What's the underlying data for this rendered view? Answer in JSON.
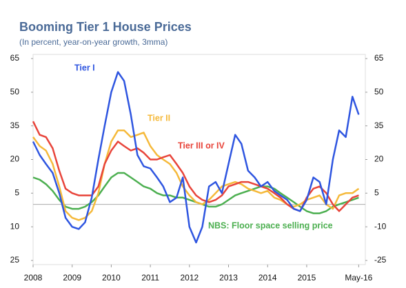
{
  "chart_data": {
    "type": "line",
    "title": "Booming Tier 1 House Prices",
    "subtitle": "(In percent, year-on-year growth, 3mma)",
    "x": [
      2008.0,
      2008.17,
      2008.33,
      2008.5,
      2008.67,
      2008.83,
      2009.0,
      2009.17,
      2009.33,
      2009.5,
      2009.67,
      2009.83,
      2010.0,
      2010.17,
      2010.33,
      2010.5,
      2010.67,
      2010.83,
      2011.0,
      2011.17,
      2011.33,
      2011.5,
      2011.67,
      2011.83,
      2012.0,
      2012.17,
      2012.33,
      2012.5,
      2012.67,
      2012.83,
      2013.0,
      2013.17,
      2013.33,
      2013.5,
      2013.67,
      2013.83,
      2014.0,
      2014.17,
      2014.33,
      2014.5,
      2014.67,
      2014.83,
      2015.0,
      2015.17,
      2015.33,
      2015.5,
      2015.67,
      2015.83,
      2016.0,
      2016.17,
      2016.33
    ],
    "xlim": [
      2008,
      2016.5
    ],
    "xticks": [
      2008,
      2009,
      2010,
      2011,
      2012,
      2013,
      2014,
      2015,
      {
        "value": 2016.33,
        "label": "May-16"
      }
    ],
    "ylim": [
      -25,
      65
    ],
    "yticks": [
      65,
      50,
      35,
      20,
      5,
      {
        "value": -10,
        "label": "10"
      },
      {
        "value": -25,
        "label": "25"
      }
    ],
    "y2lim": [
      -25,
      65
    ],
    "y2ticks": [
      65,
      50,
      35,
      20,
      5,
      -10,
      -25
    ],
    "series": [
      {
        "name": "Tier I",
        "color": "#2e55e0",
        "values": [
          28,
          22,
          18,
          14,
          5,
          -6,
          -10,
          -11,
          -8,
          3,
          20,
          35,
          50,
          59,
          55,
          40,
          22,
          17,
          16,
          12,
          8,
          1,
          3,
          12,
          -10,
          -17,
          -10,
          8,
          10,
          5,
          18,
          31,
          27,
          15,
          12,
          8,
          10,
          6,
          4,
          2,
          -2,
          -3,
          2,
          12,
          10,
          0,
          20,
          33,
          30,
          48,
          40
        ]
      },
      {
        "name": "Tier II",
        "color": "#f5b93a",
        "values": [
          30,
          26,
          24,
          18,
          8,
          -3,
          -6,
          -7,
          -6,
          -3,
          5,
          18,
          28,
          33,
          33,
          30,
          31,
          32,
          26,
          22,
          20,
          18,
          14,
          8,
          4,
          1,
          0,
          2,
          5,
          8,
          9,
          10,
          9,
          7,
          6,
          5,
          6,
          3,
          2,
          0,
          -1,
          0,
          2,
          3,
          4,
          0,
          -2,
          4,
          5,
          5,
          7
        ]
      },
      {
        "name": "Tier III or IV",
        "color": "#e8443a",
        "values": [
          37,
          31,
          30,
          25,
          15,
          7,
          5,
          4,
          4,
          4,
          8,
          18,
          24,
          28,
          26,
          24,
          25,
          23,
          20,
          20,
          21,
          22,
          18,
          14,
          8,
          4,
          2,
          1,
          2,
          4,
          8,
          9,
          10,
          10,
          9,
          8,
          7,
          5,
          3,
          0,
          -2,
          -3,
          3,
          7,
          8,
          5,
          0,
          -3,
          0,
          3,
          4
        ]
      },
      {
        "name": "NBS: Floor space selling price",
        "color": "#4caf50",
        "values": [
          12,
          11,
          9,
          6,
          2,
          -1,
          -2,
          -2,
          -1,
          1,
          4,
          8,
          12,
          14,
          14,
          12,
          10,
          8,
          7,
          5,
          4,
          4,
          3,
          3,
          2,
          1,
          0,
          -1,
          -1,
          0,
          2,
          4,
          5,
          6,
          7,
          8,
          8,
          7,
          5,
          3,
          1,
          -1,
          -3,
          -4,
          -4,
          -3,
          -1,
          0,
          1,
          2,
          3
        ]
      }
    ]
  }
}
